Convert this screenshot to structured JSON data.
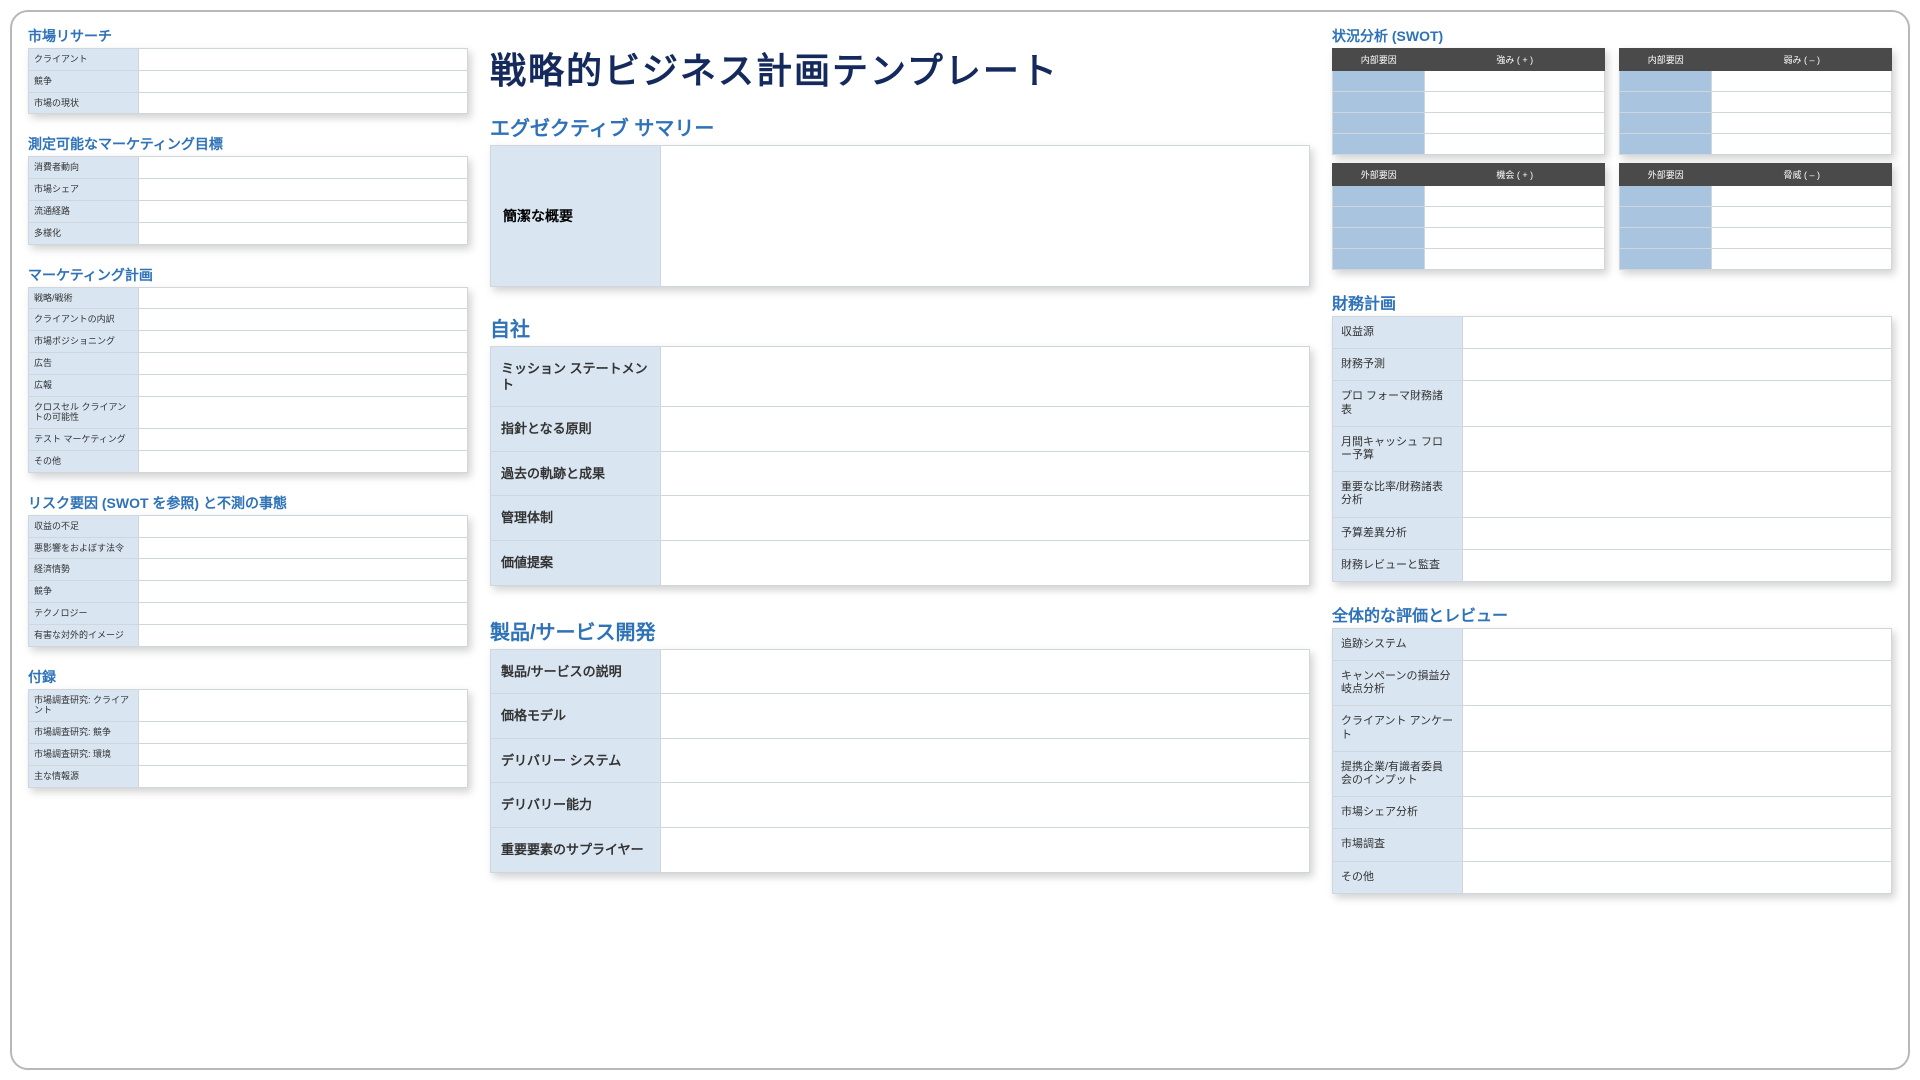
{
  "colors": {
    "heading": "#2e72b8",
    "title": "#152a5c",
    "labelBg": "#d9e5f1",
    "swotHeaderBg": "#4a4a4a",
    "swotFactorBg": "#a9c4de",
    "border": "#cfd6dc"
  },
  "mainTitle": "戦略的ビジネス計画テンプレート",
  "left": {
    "marketResearch": {
      "heading": "市場リサーチ",
      "rows": [
        "クライアント",
        "競争",
        "市場の現状"
      ]
    },
    "objectives": {
      "heading": "測定可能なマーケティング目標",
      "rows": [
        "消費者動向",
        "市場シェア",
        "流通経路",
        "多様化"
      ]
    },
    "marketingPlan": {
      "heading": "マーケティング計画",
      "rows": [
        "戦略/戦術",
        "クライアントの内訳",
        "市場ポジショニング",
        "広告",
        "広報",
        "クロスセル クライアントの可能性",
        "テスト マーケティング",
        "その他"
      ]
    },
    "risk": {
      "heading": "リスク要因 (SWOT を参照) と不測の事態",
      "rows": [
        "収益の不足",
        "悪影響をおよぼす法令",
        "経済情勢",
        "競争",
        "テクノロジー",
        "有害な対外的イメージ"
      ]
    },
    "appendix": {
      "heading": "付録",
      "rows": [
        "市場調査研究: クライアント",
        "市場調査研究: 競争",
        "市場調査研究: 環境",
        "主な情報源"
      ]
    }
  },
  "center": {
    "exec": {
      "heading": "エグゼクティブ サマリー",
      "label": "簡潔な概要"
    },
    "company": {
      "heading": "自社",
      "rows": [
        "ミッション ステートメント",
        "指針となる原則",
        "過去の軌跡と成果",
        "管理体制",
        "価値提案"
      ]
    },
    "product": {
      "heading": "製品/サービス開発",
      "rows": [
        "製品/サービスの説明",
        "価格モデル",
        "デリバリー システム",
        "デリバリー能力",
        "重要要素のサプライヤー"
      ]
    }
  },
  "right": {
    "swot": {
      "heading": "状況分析 (SWOT)",
      "blankRows": 4,
      "boxes": [
        {
          "h1": "内部要因",
          "h2": "強み ( + )"
        },
        {
          "h1": "内部要因",
          "h2": "弱み ( – )"
        },
        {
          "h1": "外部要因",
          "h2": "機会 ( + )"
        },
        {
          "h1": "外部要因",
          "h2": "脅威 ( – )"
        }
      ]
    },
    "finance": {
      "heading": "財務計画",
      "rows": [
        "収益源",
        "財務予測",
        "プロ フォーマ財務諸表",
        "月間キャッシュ フロー予算",
        "重要な比率/財務諸表分析",
        "予算差異分析",
        "財務レビューと監査"
      ]
    },
    "review": {
      "heading": "全体的な評価とレビュー",
      "rows": [
        "追跡システム",
        "キャンペーンの損益分岐点分析",
        "クライアント アンケート",
        "提携企業/有識者委員会のインプット",
        "市場シェア分析",
        "市場調査",
        "その他"
      ]
    }
  }
}
